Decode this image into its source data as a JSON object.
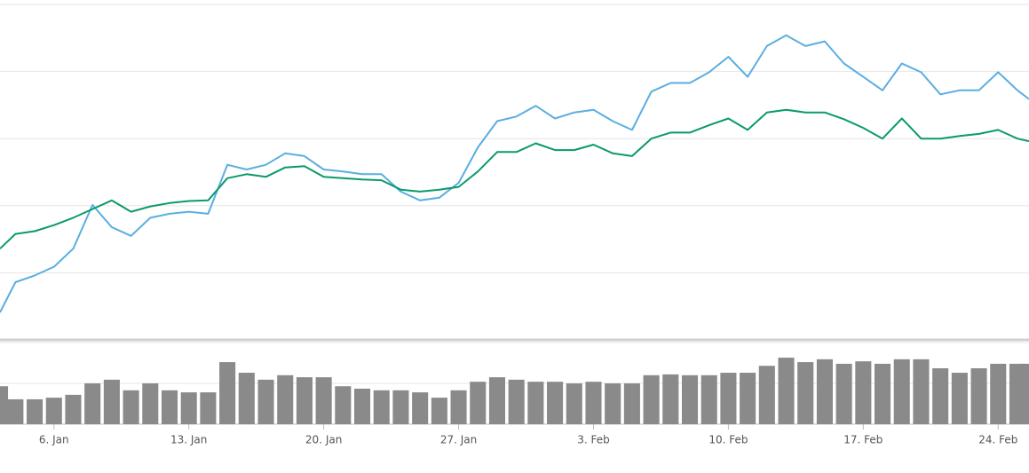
{
  "chart_data": [
    {
      "type": "line",
      "x": [
        3.2,
        4,
        5,
        6,
        7,
        8,
        9,
        10,
        11,
        12,
        13,
        14,
        15,
        16,
        17,
        18,
        19,
        20,
        21,
        22,
        23,
        24,
        25,
        26,
        27,
        28,
        29,
        30,
        31,
        32,
        33,
        34,
        35,
        36,
        37,
        38,
        39,
        40,
        41,
        42,
        43,
        44,
        45,
        46,
        47,
        48,
        49,
        50,
        51,
        52,
        53,
        54,
        55,
        56,
        56.6
      ],
      "series": [
        {
          "color": "#5aaee0",
          "values": [
            0.41,
            0.86,
            0.96,
            1.09,
            1.36,
            2.01,
            1.68,
            1.55,
            1.82,
            1.88,
            1.91,
            1.88,
            2.61,
            2.54,
            2.61,
            2.78,
            2.74,
            2.54,
            2.51,
            2.47,
            2.47,
            2.21,
            2.08,
            2.12,
            2.34,
            2.87,
            3.26,
            3.33,
            3.49,
            3.3,
            3.39,
            3.43,
            3.26,
            3.13,
            3.7,
            3.83,
            3.83,
            3.99,
            4.22,
            3.92,
            4.38,
            4.54,
            4.38,
            4.45,
            4.12,
            3.92,
            3.72,
            4.12,
            3.99,
            3.66,
            3.72,
            3.72,
            3.99,
            3.72,
            3.59
          ]
        },
        {
          "color": "#0a9a6a",
          "values": [
            1.36,
            1.58,
            1.62,
            1.71,
            1.82,
            1.95,
            2.08,
            1.91,
            1.99,
            2.04,
            2.07,
            2.08,
            2.41,
            2.47,
            2.43,
            2.57,
            2.59,
            2.43,
            2.41,
            2.39,
            2.38,
            2.24,
            2.21,
            2.24,
            2.28,
            2.51,
            2.8,
            2.8,
            2.93,
            2.83,
            2.83,
            2.91,
            2.78,
            2.74,
            3.0,
            3.09,
            3.09,
            3.2,
            3.3,
            3.13,
            3.39,
            3.43,
            3.39,
            3.39,
            3.29,
            3.16,
            3.0,
            3.3,
            3.0,
            3.0,
            3.04,
            3.07,
            3.13,
            3.0,
            2.96
          ]
        }
      ],
      "xlim": [
        3.2,
        56.6
      ],
      "ylim": [
        0,
        5
      ],
      "yticks": [
        0,
        1,
        2,
        3,
        4,
        5
      ],
      "grid": true
    },
    {
      "type": "bar",
      "x": [
        3.2,
        4,
        5,
        6,
        7,
        8,
        9,
        10,
        11,
        12,
        13,
        14,
        15,
        16,
        17,
        18,
        19,
        20,
        21,
        22,
        23,
        24,
        25,
        26,
        27,
        28,
        29,
        30,
        31,
        32,
        33,
        34,
        35,
        36,
        37,
        38,
        39,
        40,
        41,
        42,
        43,
        44,
        45,
        46,
        47,
        48,
        49,
        50,
        51,
        52,
        53,
        54,
        55,
        56,
        56.6
      ],
      "values": [
        0.93,
        0.61,
        0.61,
        0.65,
        0.72,
        1.0,
        1.09,
        0.83,
        1.0,
        0.83,
        0.78,
        0.78,
        1.52,
        1.26,
        1.09,
        1.2,
        1.15,
        1.15,
        0.93,
        0.87,
        0.83,
        0.83,
        0.78,
        0.65,
        0.83,
        1.04,
        1.15,
        1.09,
        1.04,
        1.04,
        1.0,
        1.04,
        1.0,
        1.0,
        1.2,
        1.22,
        1.2,
        1.2,
        1.26,
        1.26,
        1.43,
        1.63,
        1.52,
        1.59,
        1.48,
        1.54,
        1.48,
        1.59,
        1.59,
        1.37,
        1.26,
        1.37,
        1.48,
        1.48,
        1.48
      ],
      "color": "#8a8a8a",
      "xlim": [
        3.2,
        56.6
      ],
      "ylim": [
        0,
        2
      ],
      "yticks": [
        0,
        1,
        2
      ],
      "grid": true,
      "xticks": [
        {
          "value": 6,
          "label": "6. Jan"
        },
        {
          "value": 13,
          "label": "13. Jan"
        },
        {
          "value": 20,
          "label": "20. Jan"
        },
        {
          "value": 27,
          "label": "27. Jan"
        },
        {
          "value": 34,
          "label": "3. Feb"
        },
        {
          "value": 41,
          "label": "10. Feb"
        },
        {
          "value": 48,
          "label": "17. Feb"
        },
        {
          "value": 55,
          "label": "24. Feb"
        }
      ]
    }
  ]
}
